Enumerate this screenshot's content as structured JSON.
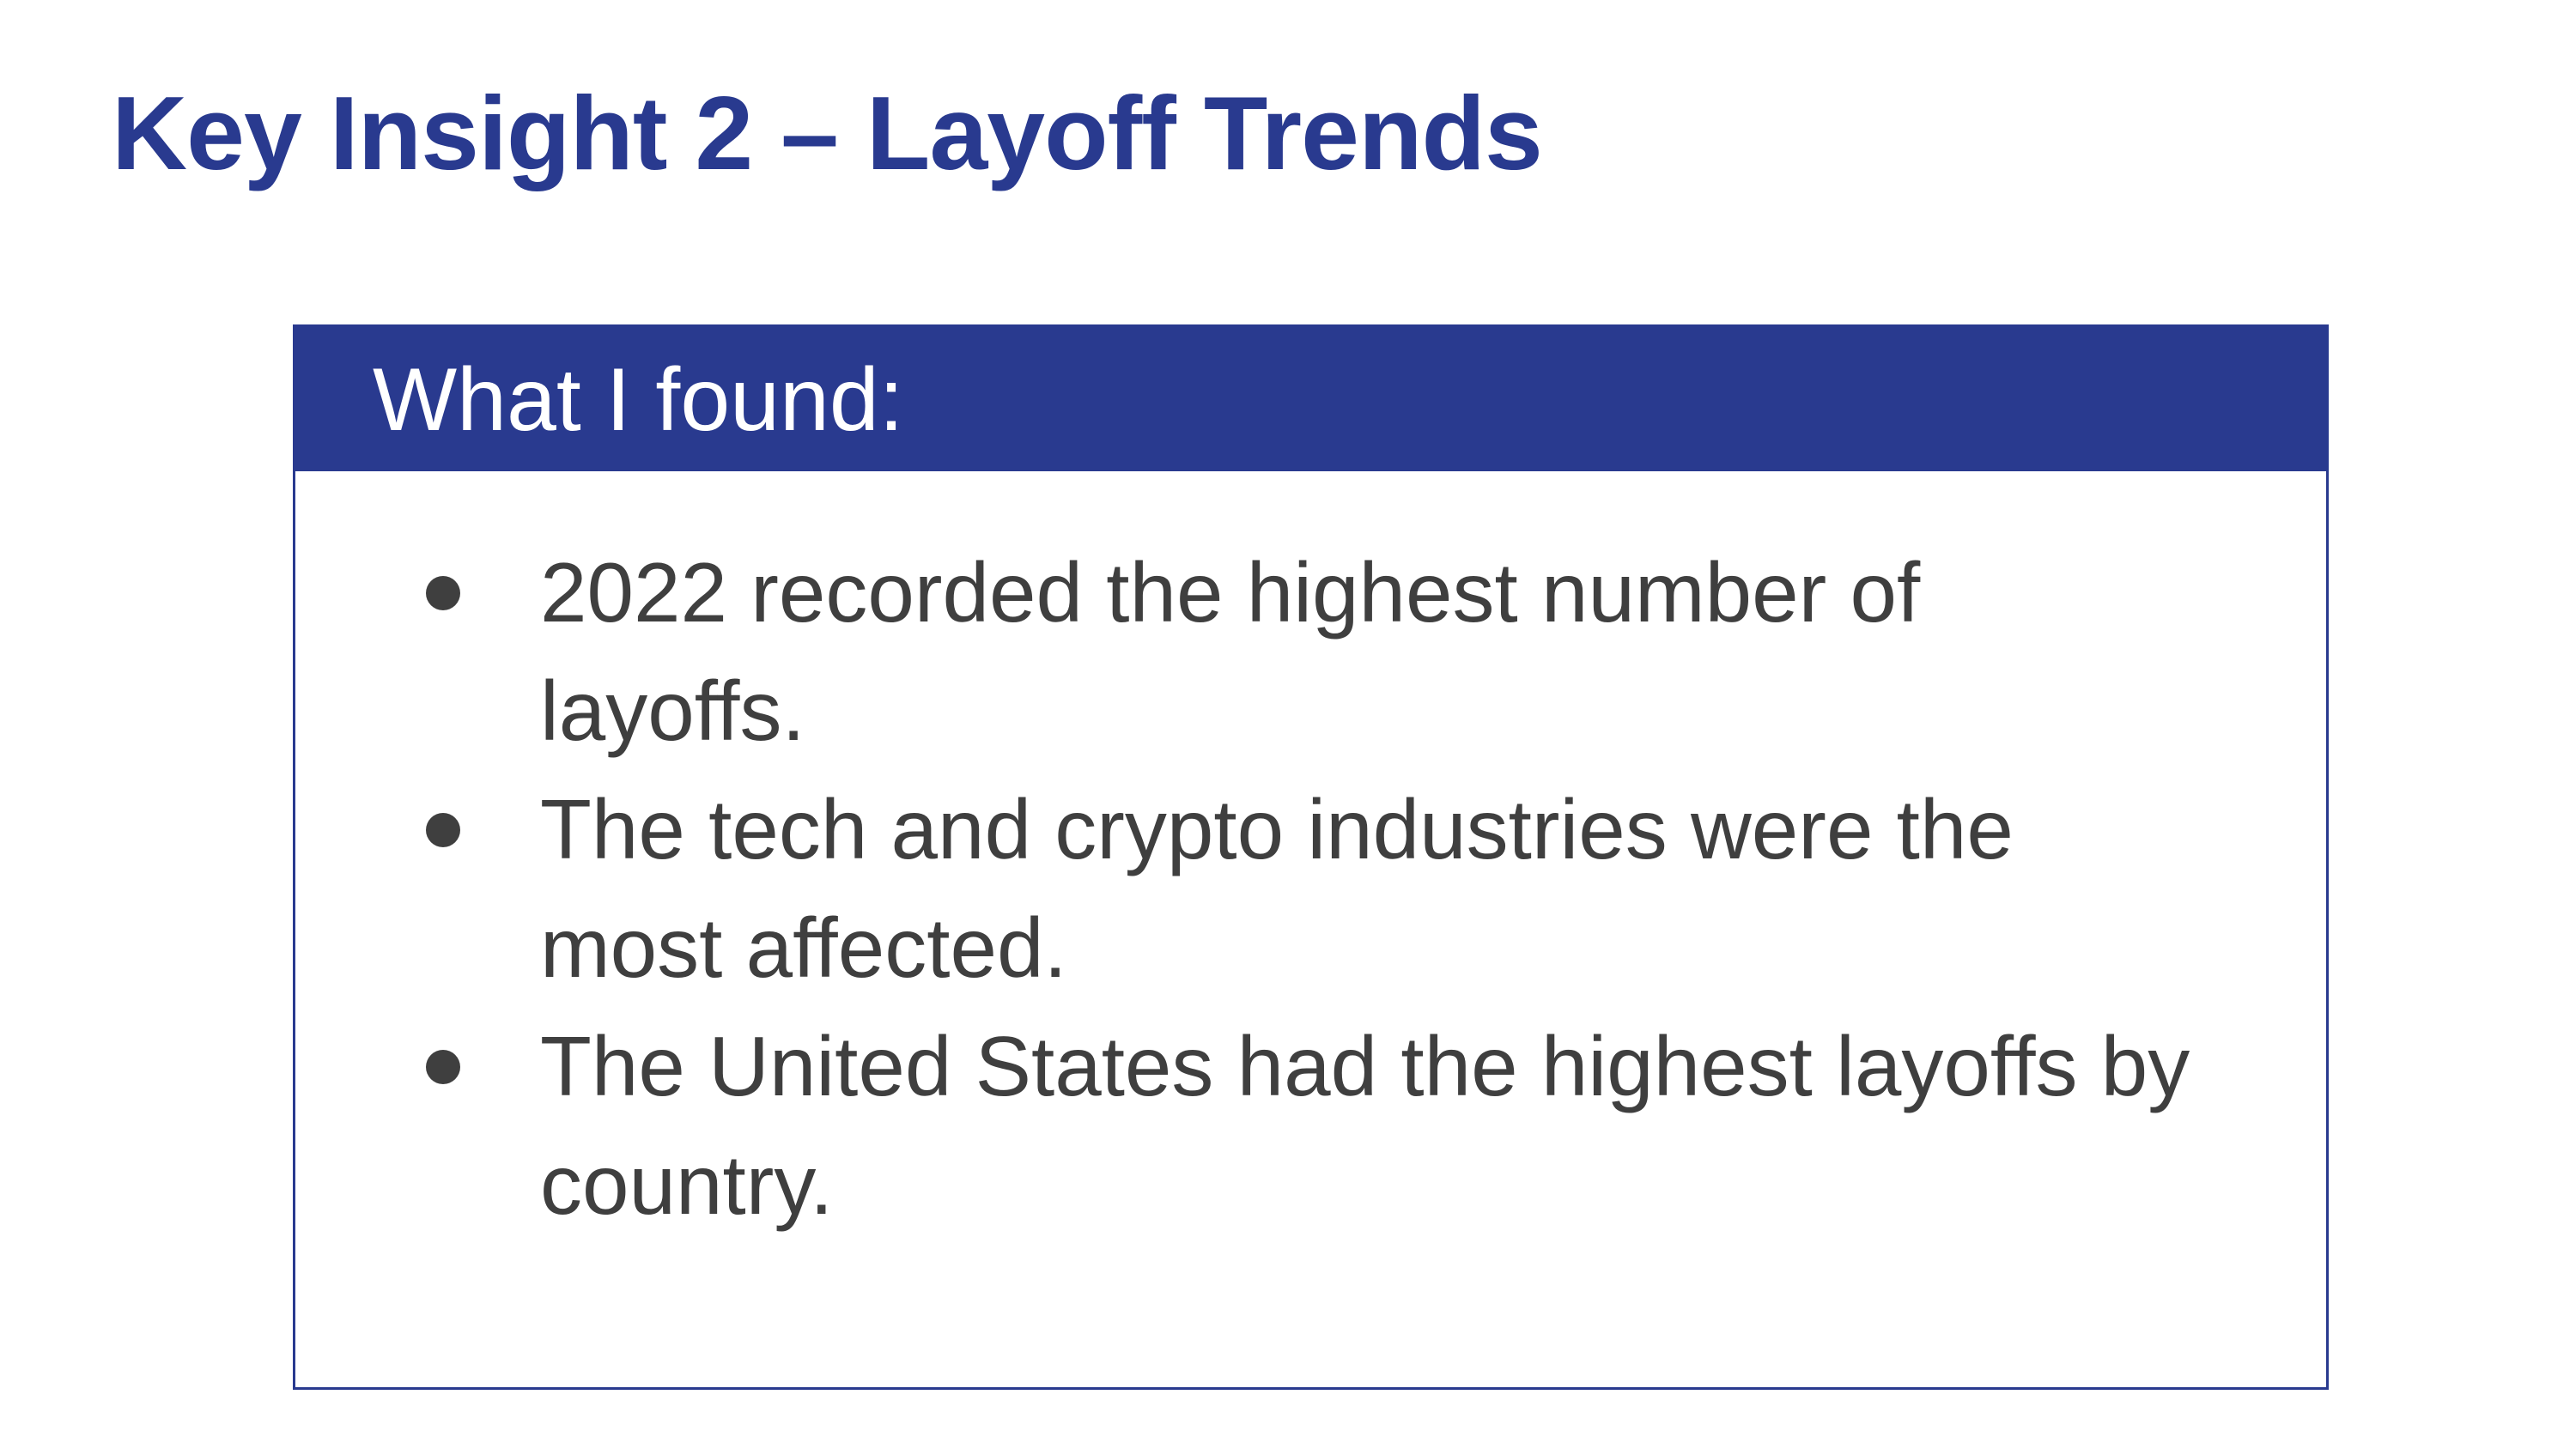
{
  "slide": {
    "title": "Key Insight 2 – Layoff Trends",
    "box": {
      "header": "What I found:",
      "bullets": [
        "2022 recorded the highest number of layoffs.",
        "The tech and crypto industries were the most affected.",
        "The United States had the highest layoffs by country."
      ]
    }
  },
  "colors": {
    "accent": "#293a8f",
    "body_text": "#3f3f3f",
    "background": "#ffffff"
  }
}
